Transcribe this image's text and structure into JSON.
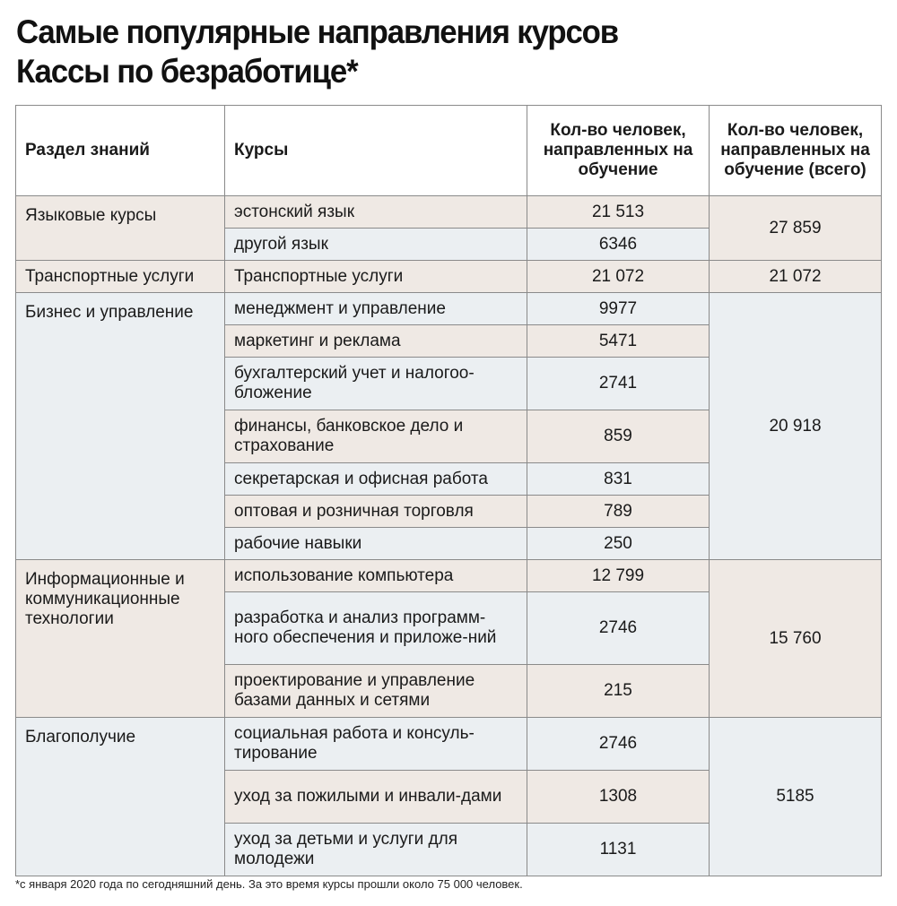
{
  "title": {
    "line1": "Самые популярные направления курсов",
    "line2": "Кассы по безработице*"
  },
  "table": {
    "headers": {
      "section": "Раздел знаний",
      "courses": "Курсы",
      "count": "Кол-во человек, направленных на обучение",
      "total": "Кол-во человек, направленных на обучение (всего)"
    },
    "groups": [
      {
        "section": "Языковые курсы",
        "total": "27 859",
        "rows": [
          {
            "course": "эстонский язык",
            "count": "21 513"
          },
          {
            "course": "другой язык",
            "count": "6346"
          }
        ]
      },
      {
        "section": "Транспортные услуги",
        "total": "21 072",
        "rows": [
          {
            "course": "Транспортные услуги",
            "count": "21 072"
          }
        ]
      },
      {
        "section": "Бизнес и управление",
        "total": "20 918",
        "rows": [
          {
            "course": "менеджмент и управление",
            "count": "9977"
          },
          {
            "course": "маркетинг и реклама",
            "count": "5471"
          },
          {
            "course": "бухгалтерский учет и налогоо-бложение",
            "count": "2741"
          },
          {
            "course": "финансы, банковское дело и страхование",
            "count": "859"
          },
          {
            "course": "секретарская и офисная работа",
            "count": "831"
          },
          {
            "course": "оптовая и розничная торговля",
            "count": "789"
          },
          {
            "course": "рабочие навыки",
            "count": "250"
          }
        ]
      },
      {
        "section": "Информационные и коммуникационные технологии",
        "total": "15 760",
        "rows": [
          {
            "course": "использование компьютера",
            "count": "12 799"
          },
          {
            "course": "разработка и анализ программ-ного обеспечения и приложе-ний",
            "count": "2746"
          },
          {
            "course": "проектирование и управление базами данных и сетями",
            "count": "215"
          }
        ]
      },
      {
        "section": "Благополучие",
        "total": "5185",
        "rows": [
          {
            "course": "социальная работа и консуль-тирование",
            "count": "2746"
          },
          {
            "course": "уход за пожилыми и инвали-дами",
            "count": "1308"
          },
          {
            "course": "уход за детьми и услуги для молодежи",
            "count": "1131"
          }
        ]
      }
    ]
  },
  "footnote": "*с января 2020 года по сегодняшний день. За это время курсы прошли около 75 000 человек.",
  "colors": {
    "beige": "#efe9e4",
    "blue": "#ebeff2",
    "border": "#8a8a8a"
  }
}
